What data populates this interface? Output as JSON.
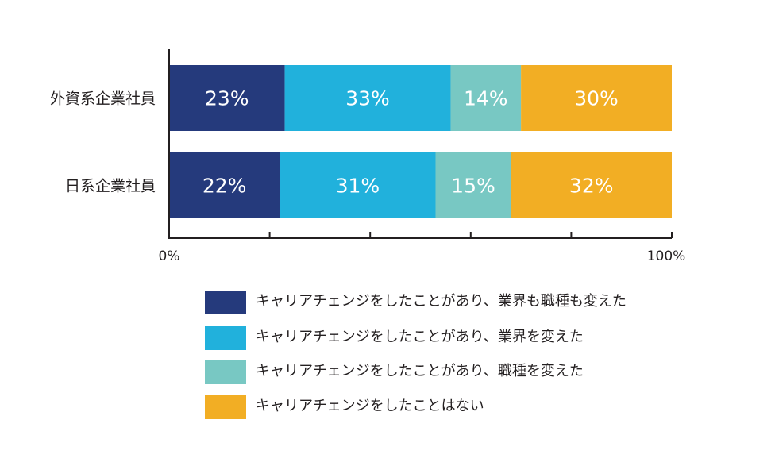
{
  "chart_data": {
    "type": "bar",
    "orientation": "horizontal",
    "stacked": true,
    "categories": [
      "外資系企業社員",
      "日系企業社員"
    ],
    "series": [
      {
        "name": "キャリアチェンジをしたことがあり、業界も職種も変えた",
        "values": [
          23,
          22
        ],
        "color": "#253a7c",
        "labels": [
          "23%",
          "22%"
        ]
      },
      {
        "name": "キャリアチェンジをしたことがあり、業界を変えた",
        "values": [
          33,
          31
        ],
        "color": "#21b1dc",
        "labels": [
          "33%",
          "31%"
        ]
      },
      {
        "name": "キャリアチェンジをしたことがあり、職種を変えた",
        "values": [
          14,
          15
        ],
        "color": "#78c8c3",
        "labels": [
          "14%",
          "15%"
        ]
      },
      {
        "name": "キャリアチェンジをしたことはない",
        "values": [
          30,
          32
        ],
        "color": "#f2ae24",
        "labels": [
          "30%",
          "32%"
        ]
      }
    ],
    "xlim": [
      0,
      100
    ],
    "x_tick_labels": [
      "0%",
      "100%"
    ],
    "title": "",
    "xlabel": "",
    "ylabel": "",
    "grid": false,
    "legend_position": "bottom"
  }
}
